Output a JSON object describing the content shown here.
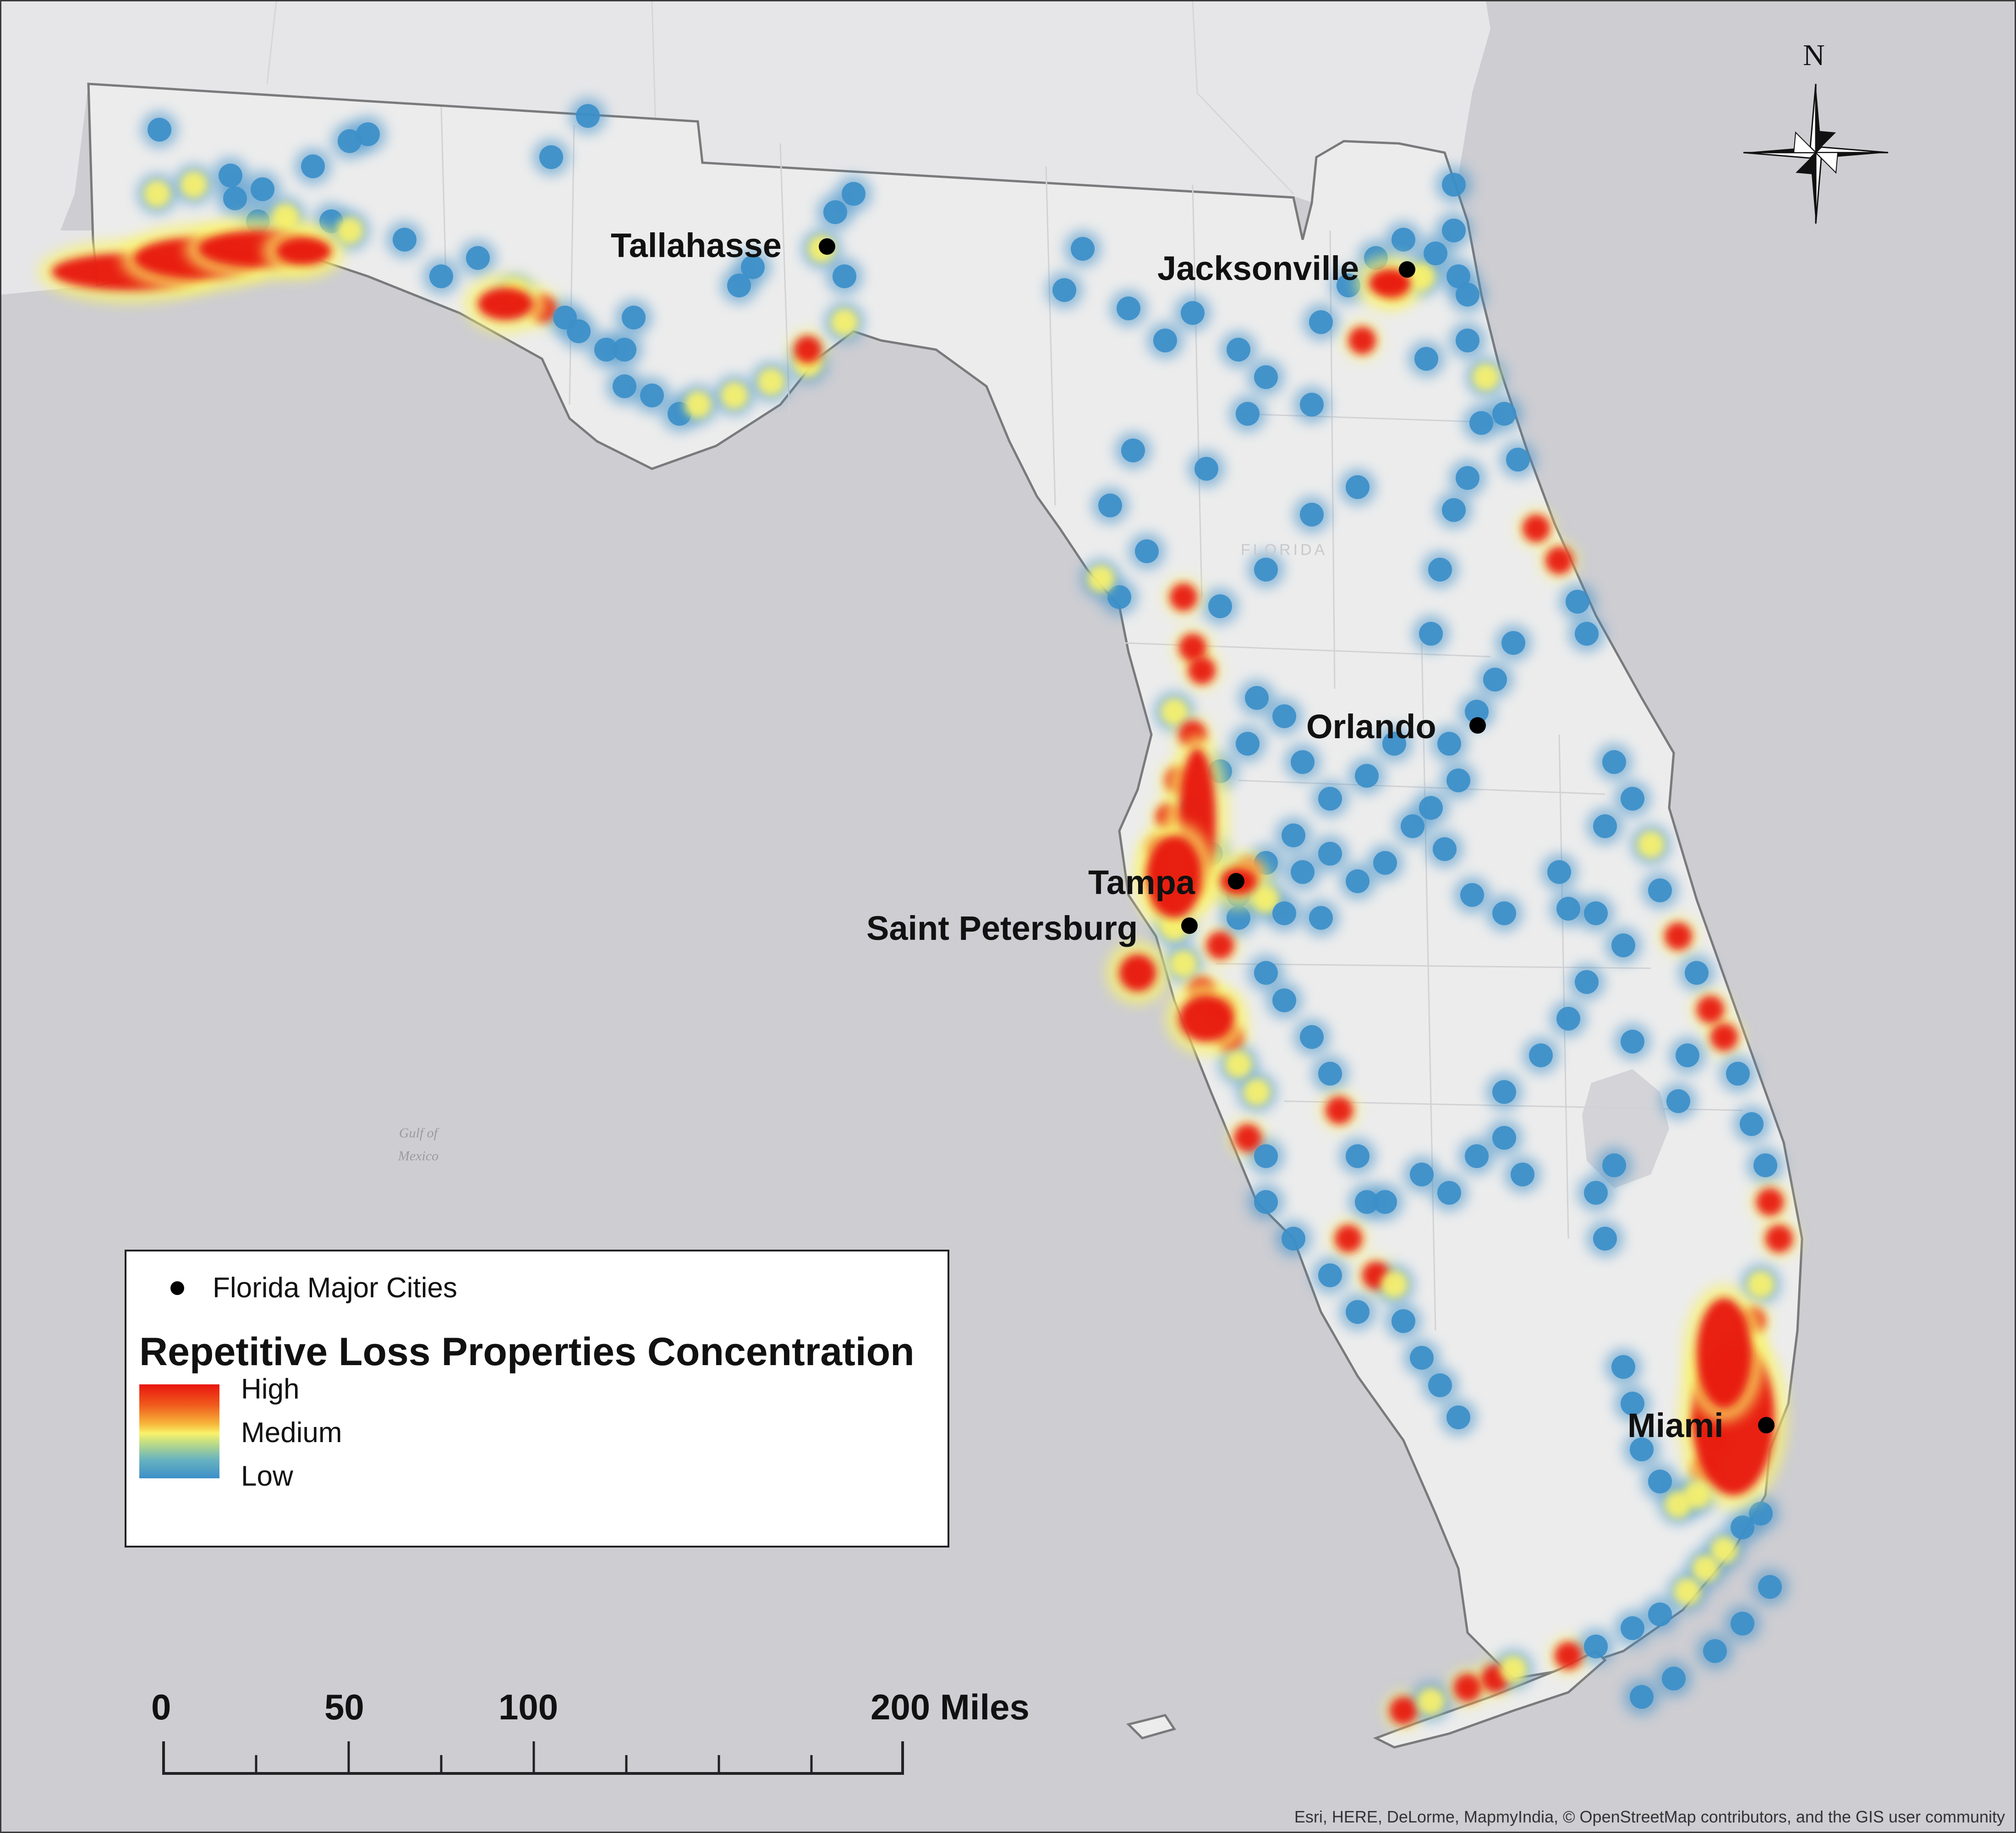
{
  "map": {
    "water_label_lines": [
      "Gulf of",
      "Mexico"
    ],
    "state_label": "FLORIDA",
    "north_label": "N",
    "cities": [
      {
        "name": "Tallahasse"
      },
      {
        "name": "Jacksonville"
      },
      {
        "name": "Orlando"
      },
      {
        "name": "Tampa"
      },
      {
        "name": "Saint Petersburg"
      },
      {
        "name": "Miami"
      }
    ]
  },
  "legend": {
    "cities_entry": "Florida Major Cities",
    "title": "Repetitive Loss Properties Concentration",
    "ramp": {
      "high": "High",
      "medium": "Medium",
      "low": "Low"
    },
    "ramp_colors": {
      "high": "#e8150f",
      "medium": "#f9f26a",
      "low": "#3c8fc9"
    }
  },
  "scale": {
    "ticks": [
      "0",
      "50",
      "100",
      "200 Miles"
    ]
  },
  "attribution": "Esri, HERE, DeLorme, MapmyIndia, © OpenStreetMap contributors, and the GIS user community",
  "colors": {
    "ocean": "#cdcdd2",
    "land": "#ececec",
    "state_land": "#ececec",
    "hotspot_low": "#3c8fc9",
    "hotspot_medium": "#f9f26a",
    "hotspot_high": "#e8150f"
  }
}
